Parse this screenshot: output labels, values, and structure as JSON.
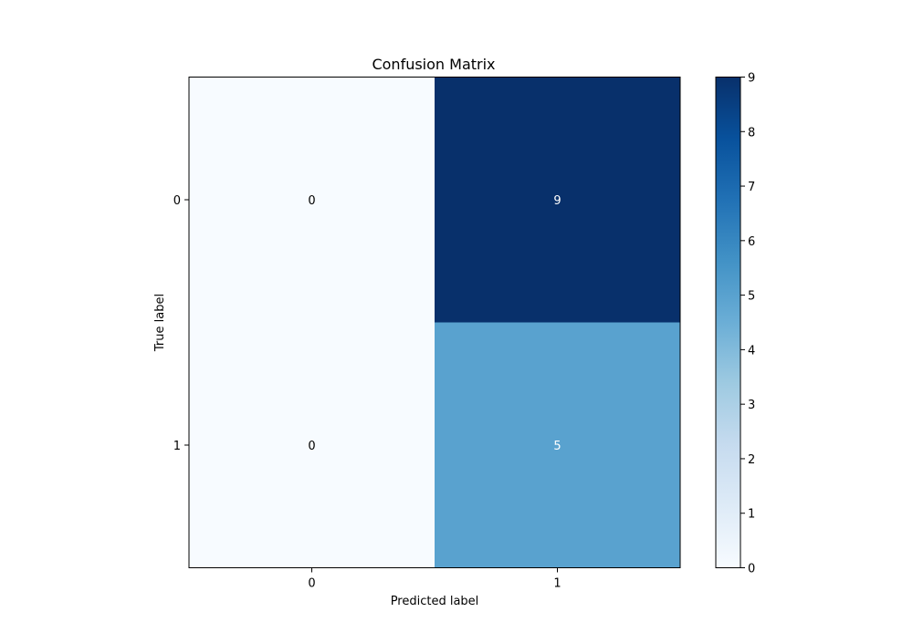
{
  "chart_data": {
    "type": "heatmap",
    "title": "Confusion Matrix",
    "xlabel": "Predicted label",
    "ylabel": "True label",
    "x_ticks": [
      "0",
      "1"
    ],
    "y_ticks": [
      "0",
      "1"
    ],
    "matrix": [
      [
        0,
        9
      ],
      [
        0,
        5
      ]
    ],
    "colormap": "Blues",
    "colorbar": {
      "min": 0,
      "max": 9,
      "ticks": [
        "0",
        "1",
        "2",
        "3",
        "4",
        "5",
        "6",
        "7",
        "8",
        "9"
      ]
    },
    "grid": false
  }
}
